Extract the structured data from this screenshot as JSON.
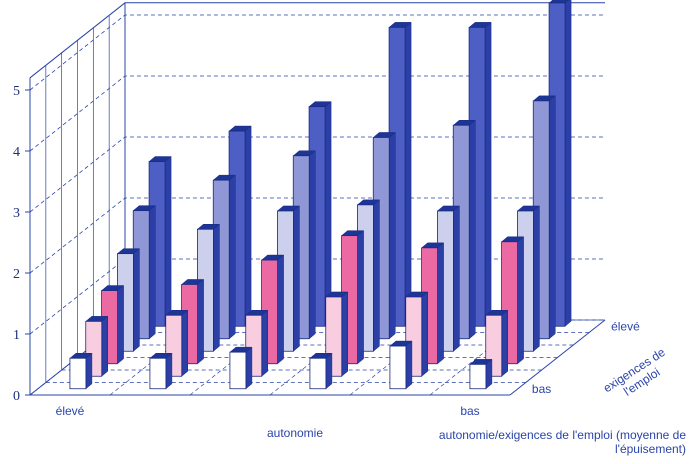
{
  "chart_data": {
    "type": "bar3d",
    "title": "autonomie/exigences de l'emploi (moyenne de l'épuisement)",
    "x_axis_label": "autonomie",
    "depth_axis_label": "exigences de l'emploi",
    "categories": [
      "élevé",
      null,
      null,
      null,
      null,
      "bas"
    ],
    "series": [
      {
        "name": "bas",
        "color": "#ffffff",
        "values": [
          0.5,
          0.5,
          0.6,
          0.5,
          0.7,
          0.4
        ]
      },
      {
        "name": null,
        "color": "#f9cde0",
        "values": [
          0.9,
          1.0,
          1.0,
          1.3,
          1.3,
          1.0
        ]
      },
      {
        "name": null,
        "color": "#ec6aa4",
        "values": [
          1.2,
          1.3,
          1.7,
          2.1,
          1.9,
          2.0
        ]
      },
      {
        "name": null,
        "color": "#cdd0ec",
        "values": [
          1.6,
          2.0,
          2.3,
          2.4,
          2.3,
          2.3
        ]
      },
      {
        "name": null,
        "color": "#8f97d6",
        "values": [
          2.1,
          2.6,
          3.0,
          3.3,
          3.5,
          3.9
        ]
      },
      {
        "name": "élevé",
        "color": "#4d5ec4",
        "values": [
          2.7,
          3.2,
          3.6,
          4.9,
          4.9,
          5.3
        ]
      }
    ],
    "ylim": [
      0,
      5
    ],
    "yticks": [
      0,
      1,
      2,
      3,
      4,
      5
    ],
    "grid": true
  }
}
